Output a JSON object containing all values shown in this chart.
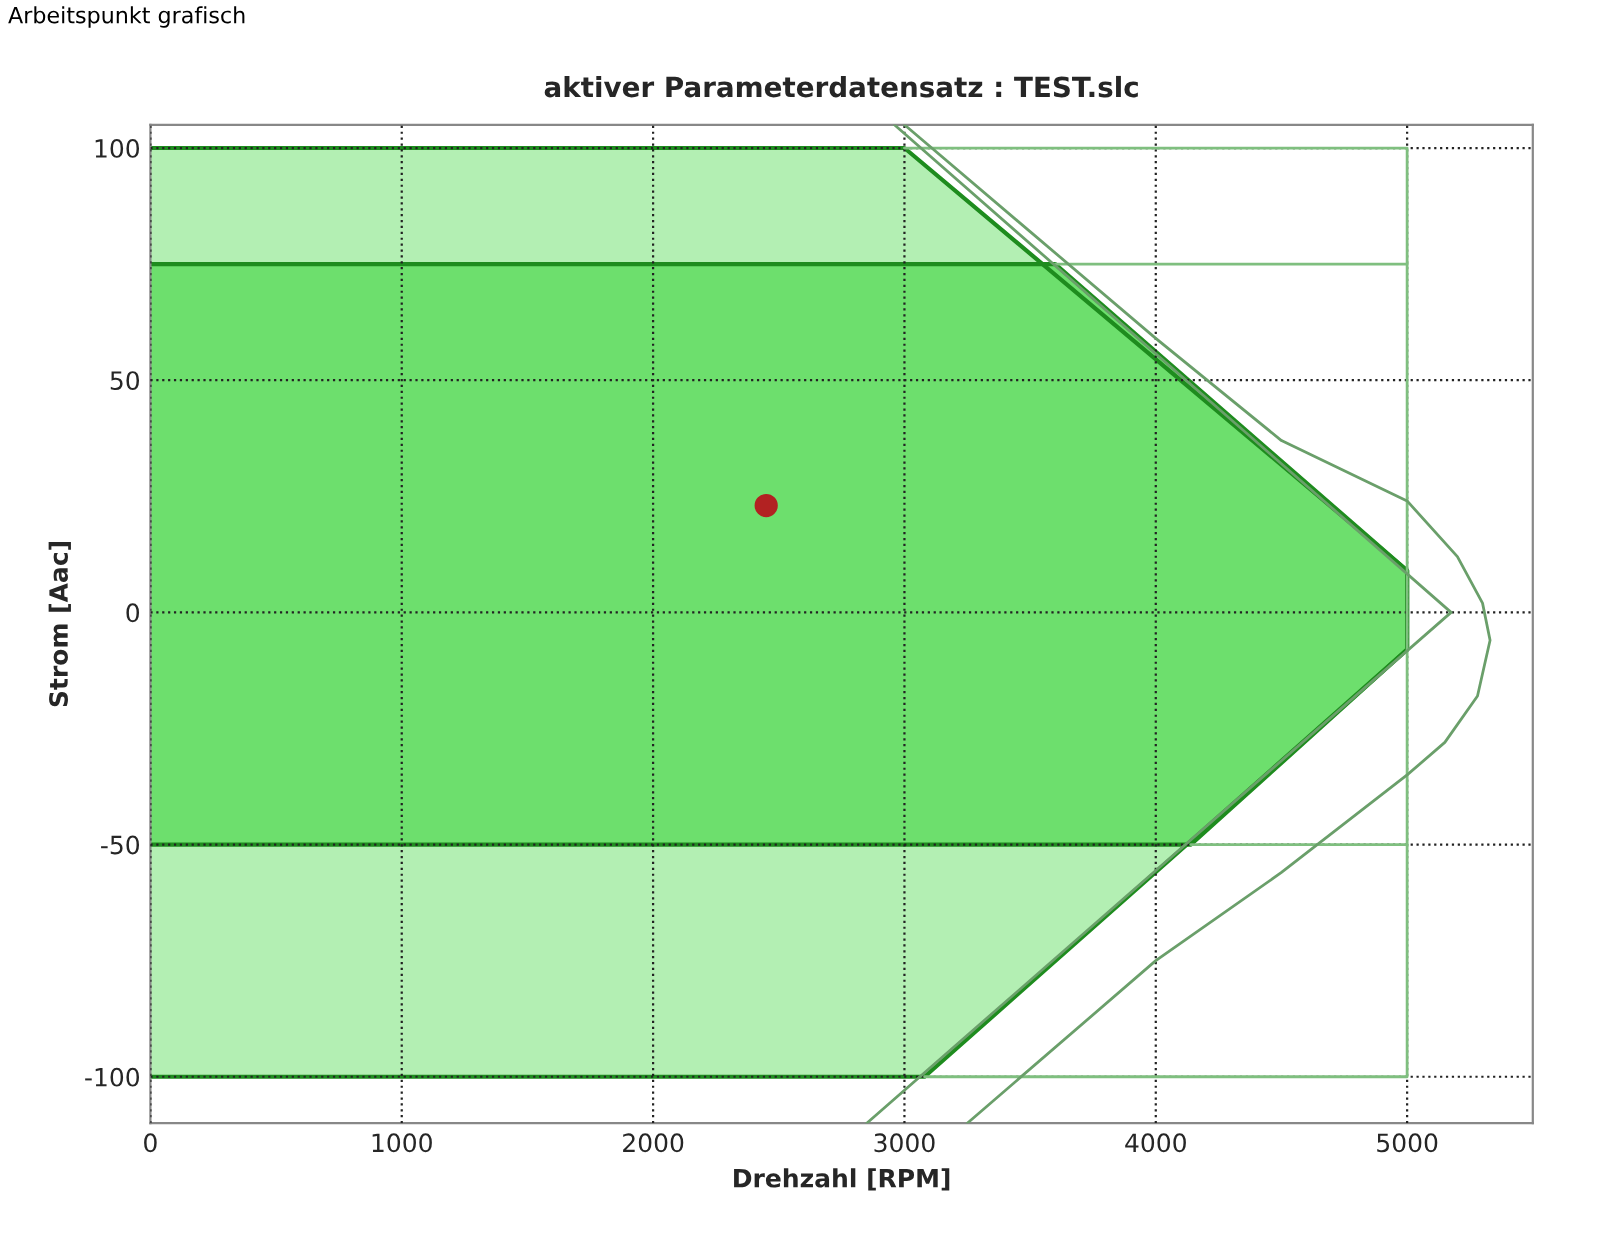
{
  "chart_data": {
    "type": "area",
    "title": "aktiver Parameterdatensatz : TEST.slc",
    "xlabel": "Drehzahl [RPM]",
    "ylabel": "Strom [Aac]",
    "annotations": [
      "Arbeitspunkt grafisch"
    ],
    "xlim": [
      0,
      5500
    ],
    "ylim": [
      -110,
      105
    ],
    "xticks": [
      0,
      1000,
      2000,
      3000,
      4000,
      5000
    ],
    "yticks": [
      -100,
      -50,
      0,
      50,
      100
    ],
    "grid": true,
    "legend": false,
    "series": [
      {
        "color": "#b3efb3",
        "x": [
          0,
          3000,
          5000,
          5000,
          3080,
          0
        ],
        "values": [
          100,
          100,
          9,
          -8,
          -100,
          -100
        ]
      },
      {
        "color": "#6ddf6d",
        "x": [
          0,
          3600,
          5000,
          5000,
          4140,
          0
        ],
        "values": [
          75,
          75,
          9,
          -8,
          -50,
          -50
        ]
      },
      {
        "type": "line",
        "color": "#7fbf7f",
        "x": [
          3000,
          5000,
          5000,
          3080
        ],
        "values": [
          100,
          100,
          -100,
          -100
        ]
      },
      {
        "type": "line",
        "color": "#7fbf7f",
        "x": [
          3600,
          5000
        ],
        "values": [
          75,
          75
        ]
      },
      {
        "type": "line",
        "color": "#7fbf7f",
        "x": [
          4140,
          5000
        ],
        "values": [
          -50,
          -50
        ]
      },
      {
        "type": "line",
        "color": "#6a9f6a",
        "x": [
          2960,
          5175,
          2850
        ],
        "values": [
          105,
          0,
          -110
        ]
      },
      {
        "type": "line",
        "color": "#6a9f6a",
        "x": [
          3000,
          3500,
          4000,
          4500,
          5000,
          5200,
          5300,
          5330,
          5280,
          5150,
          5000,
          4500,
          4000,
          3250
        ],
        "values": [
          105,
          82,
          59,
          37,
          24,
          12,
          2,
          -6,
          -18,
          -28,
          -35,
          -56,
          -75,
          -110
        ]
      },
      {
        "type": "scatter",
        "color": "#b22222",
        "marker": "circle",
        "x": [
          2450
        ],
        "values": [
          23
        ]
      }
    ]
  }
}
